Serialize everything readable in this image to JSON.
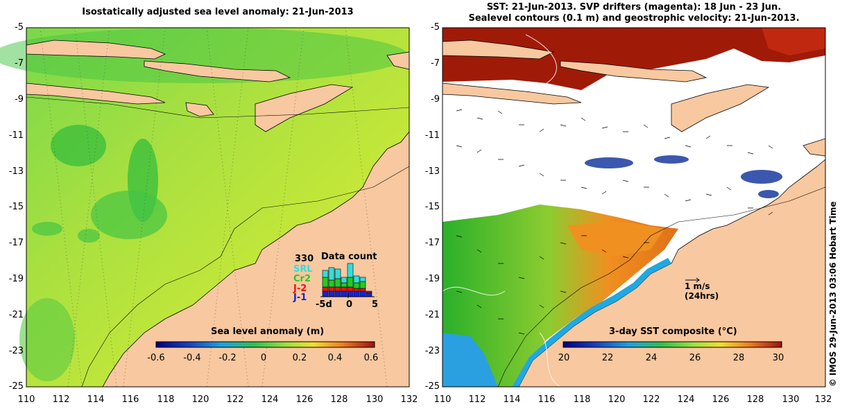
{
  "left_panel": {
    "title": "Isostatically adjusted sea level anomaly: 21-Jun-2013",
    "y_ticks": [
      "-5",
      "-7",
      "-9",
      "-11",
      "-13",
      "-15",
      "-17",
      "-19",
      "-21",
      "-23",
      "-25"
    ],
    "x_ticks": [
      "110",
      "112",
      "114",
      "116",
      "118",
      "120",
      "122",
      "124",
      "126",
      "128",
      "130",
      "132"
    ],
    "colorbar_title": "Sea level anomaly (m)",
    "colorbar_ticks": [
      "-0.6",
      "-0.4",
      "-0.2",
      "0",
      "0.2",
      "0.4",
      "0.6"
    ],
    "inset": {
      "count": "330",
      "title": "Data count",
      "satellites": [
        {
          "label": "SRL",
          "color": "#33dddd"
        },
        {
          "label": "Cr2",
          "color": "#22cc22"
        },
        {
          "label": "J-2",
          "color": "#ee1111"
        },
        {
          "label": "J-1",
          "color": "#1122dd"
        }
      ],
      "axis_ticks": [
        "-5d",
        "0",
        "5"
      ]
    }
  },
  "right_panel": {
    "title_line1": "SST: 21-Jun-2013. SVP drifters (magenta): 18 Jun - 23 Jun.",
    "title_line2": "Sealevel contours (0.1 m) and geostrophic velocity: 21-Jun-2013.",
    "y_ticks": [
      "-5",
      "-7",
      "-9",
      "-11",
      "-13",
      "-15",
      "-17",
      "-19",
      "-21",
      "-23",
      "-25"
    ],
    "x_ticks": [
      "110",
      "112",
      "114",
      "116",
      "118",
      "120",
      "122",
      "124",
      "126",
      "128",
      "130",
      "132"
    ],
    "colorbar_title": "3-day SST composite (°C)",
    "colorbar_ticks": [
      "20",
      "22",
      "24",
      "26",
      "28",
      "30"
    ],
    "scale_label": "1 m/s",
    "scale_sublabel": "(24hrs)"
  },
  "credit": "© IMOS 29-Jun-2013 03:06 Hobart Time",
  "colors": {
    "land": "#f8c8a0",
    "sla_background": "#a8e040",
    "sst_warm": "#a01a08",
    "sst_mid": "#2ab02a",
    "sst_cool": "#2aa0e0",
    "sst_orange": "#f09020"
  }
}
